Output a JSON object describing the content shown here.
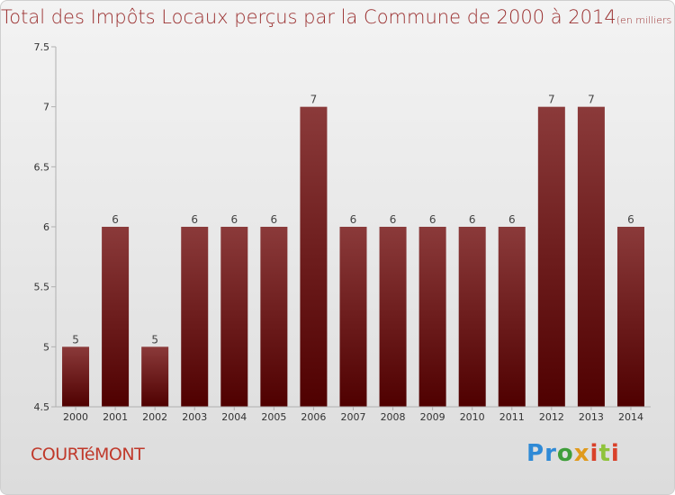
{
  "title": {
    "main": "Total des Impôts Locaux perçus par la Commune de 2000 à 2014",
    "unit": "(en milliers d'€)"
  },
  "commune_name": "COURTéMONT",
  "logo_text": "Proxiti",
  "colors": {
    "bar_top": "#8b3a3a",
    "bar_bottom": "#4f0000",
    "title": "#9a2f2f",
    "commune": "#c0392b"
  },
  "chart_data": {
    "type": "bar",
    "title": "Total des Impôts Locaux perçus par la Commune de 2000 à 2014",
    "subtitle": "(en milliers d'€)",
    "categories": [
      "2000",
      "2001",
      "2002",
      "2003",
      "2004",
      "2005",
      "2006",
      "2007",
      "2008",
      "2009",
      "2010",
      "2011",
      "2012",
      "2013",
      "2014"
    ],
    "values": [
      5,
      6,
      5,
      6,
      6,
      6,
      7,
      6,
      6,
      6,
      6,
      6,
      7,
      7,
      6
    ],
    "data_labels": [
      "5",
      "6",
      "5",
      "6",
      "6",
      "6",
      "7",
      "6",
      "6",
      "6",
      "6",
      "6",
      "7",
      "7",
      "6"
    ],
    "ylim": [
      4.5,
      7.5
    ],
    "yticks": [
      4.5,
      5,
      5.5,
      6,
      6.5,
      7,
      7.5
    ],
    "ytick_labels": [
      "4.5",
      "5",
      "5.5",
      "6",
      "6.5",
      "7",
      "7.5"
    ],
    "xlabel": "",
    "ylabel": "",
    "grid": false
  }
}
